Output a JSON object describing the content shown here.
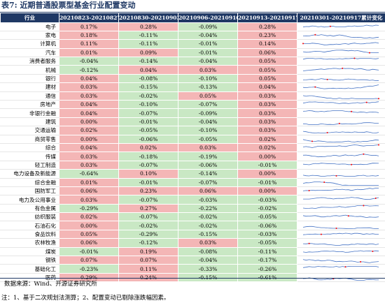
{
  "title": "表7: 近期普通股票型基金行业配置变动",
  "headers": [
    "行业",
    "20210823-20210827",
    "20210830-20210903",
    "20210906-20210910",
    "20210913-20210917",
    "20210301-20210917累计变化"
  ],
  "rows": [
    {
      "industry": "电子",
      "values": [
        "0.17%",
        "0.28%",
        "-0.09%",
        "0.28%"
      ]
    },
    {
      "industry": "家电",
      "values": [
        "0.18%",
        "-0.11%",
        "-0.04%",
        "0.23%"
      ]
    },
    {
      "industry": "计算机",
      "values": [
        "0.11%",
        "-0.11%",
        "-0.01%",
        "0.14%"
      ]
    },
    {
      "industry": "汽车",
      "values": [
        "0.01%",
        "0.09%",
        "-0.01%",
        "0.06%"
      ]
    },
    {
      "industry": "消费者服务",
      "values": [
        "-0.04%",
        "-0.14%",
        "-0.04%",
        "0.05%"
      ]
    },
    {
      "industry": "机械",
      "values": [
        "-0.12%",
        "0.04%",
        "0.03%",
        "0.05%"
      ]
    },
    {
      "industry": "银行",
      "values": [
        "0.04%",
        "-0.08%",
        "-0.10%",
        "0.05%"
      ]
    },
    {
      "industry": "建材",
      "values": [
        "0.03%",
        "-0.15%",
        "-0.13%",
        "0.04%"
      ]
    },
    {
      "industry": "通信",
      "values": [
        "0.03%",
        "-0.02%",
        "0.05%",
        "0.03%"
      ]
    },
    {
      "industry": "房地产",
      "values": [
        "0.04%",
        "-0.10%",
        "-0.07%",
        "0.03%"
      ]
    },
    {
      "industry": "非银行金融",
      "values": [
        "0.04%",
        "-0.07%",
        "-0.09%",
        "0.03%"
      ]
    },
    {
      "industry": "建筑",
      "values": [
        "0.00%",
        "-0.01%",
        "-0.04%",
        "0.03%"
      ]
    },
    {
      "industry": "交通运输",
      "values": [
        "0.02%",
        "-0.05%",
        "-0.10%",
        "0.03%"
      ]
    },
    {
      "industry": "商贸零售",
      "values": [
        "0.00%",
        "-0.06%",
        "-0.05%",
        "0.02%"
      ]
    },
    {
      "industry": "综合",
      "values": [
        "0.04%",
        "0.02%",
        "0.03%",
        "0.02%"
      ]
    },
    {
      "industry": "传媒",
      "values": [
        "0.03%",
        "-0.18%",
        "-0.19%",
        "0.00%"
      ]
    },
    {
      "industry": "轻工制造",
      "values": [
        "0.03%",
        "-0.07%",
        "-0.06%",
        "-0.01%"
      ]
    },
    {
      "industry": "电力设备及新能源",
      "values": [
        "-0.64%",
        "0.10%",
        "-0.14%",
        "0.00%"
      ]
    },
    {
      "industry": "综合金融",
      "values": [
        "0.01%",
        "-0.01%",
        "-0.07%",
        "-0.01%"
      ]
    },
    {
      "industry": "国防军工",
      "values": [
        "0.06%",
        "0.23%",
        "0.06%",
        "0.00%"
      ]
    },
    {
      "industry": "电力及公用事业",
      "values": [
        "0.03%",
        "-0.07%",
        "-0.03%",
        "-0.03%"
      ]
    },
    {
      "industry": "有色金属",
      "values": [
        "-0.29%",
        "0.27%",
        "-0.22%",
        "-0.02%"
      ]
    },
    {
      "industry": "纺织服装",
      "values": [
        "0.02%",
        "-0.07%",
        "-0.02%",
        "-0.05%"
      ]
    },
    {
      "industry": "石油石化",
      "values": [
        "0.00%",
        "-0.02%",
        "-0.02%",
        "-0.06%"
      ]
    },
    {
      "industry": "食品饮料",
      "values": [
        "0.05%",
        "-0.29%",
        "-0.15%",
        "-0.03%"
      ]
    },
    {
      "industry": "农林牧渔",
      "values": [
        "0.06%",
        "-0.12%",
        "0.03%",
        "-0.05%"
      ]
    },
    {
      "industry": "煤炭",
      "values": [
        "-0.01%",
        "0.19%",
        "-0.08%",
        "-0.11%"
      ]
    },
    {
      "industry": "钢铁",
      "values": [
        "0.07%",
        "0.07%",
        "-0.04%",
        "-0.17%"
      ]
    },
    {
      "industry": "基础化工",
      "values": [
        "-0.23%",
        "0.11%",
        "-0.33%",
        "-0.26%"
      ]
    },
    {
      "industry": "医药",
      "values": [
        "0.29%",
        "0.24%",
        "-0.15%",
        "-0.61%"
      ]
    }
  ],
  "sparkline_color": "#4472c4",
  "sparkline_marker_color": "#ff0000",
  "positive_color": "#f4b6b6",
  "negative_color": "#c9e8c4",
  "header_color": "#1f3864",
  "source": "数据来源：Wind、开源证券研究所",
  "note": "注：1、基于二次规划法测算；2、配置变动已剔除涨跌幅因素。"
}
